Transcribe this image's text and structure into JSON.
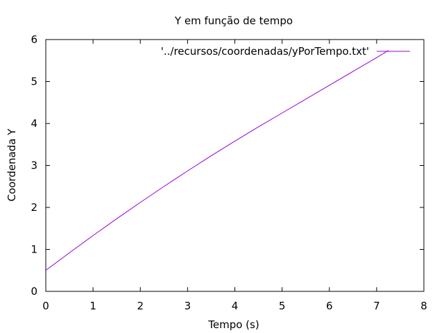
{
  "chart_data": {
    "type": "line",
    "title": "Y em função de tempo",
    "xlabel": "Tempo (s)",
    "ylabel": "Coordenada Y",
    "xlim": [
      0,
      8
    ],
    "ylim": [
      0,
      6
    ],
    "xticks": [
      "0",
      "1",
      "2",
      "3",
      "4",
      "5",
      "6",
      "7",
      "8"
    ],
    "yticks": [
      "0",
      "1",
      "2",
      "3",
      "4",
      "5",
      "6"
    ],
    "grid": false,
    "legend_position": "top-right",
    "series": [
      {
        "name": "'../recursos/coordenadas/yPorTempo.txt'",
        "color": "#9400d3",
        "x": [
          0,
          0.5,
          1,
          1.5,
          2,
          2.5,
          3,
          3.5,
          4,
          4.5,
          5,
          5.5,
          6,
          6.5,
          7,
          7.25
        ],
        "y": [
          0.5,
          0.92,
          1.33,
          1.73,
          2.12,
          2.5,
          2.87,
          3.23,
          3.58,
          3.92,
          4.25,
          4.58,
          4.91,
          5.24,
          5.57,
          5.74
        ]
      }
    ]
  }
}
